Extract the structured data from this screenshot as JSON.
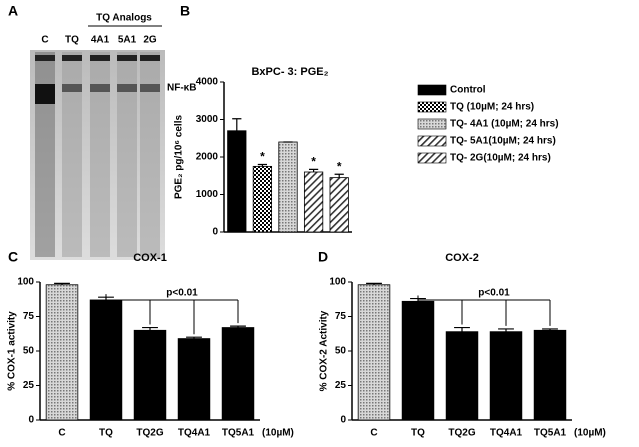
{
  "gel": {
    "panel": "A",
    "header": "TQ Analogs",
    "lanes": [
      "C",
      "TQ",
      "4A1",
      "5A1",
      "2G"
    ],
    "band_label": "NF-κB"
  },
  "chart_data": [
    {
      "panel": "B",
      "type": "bar",
      "title": "BxPC- 3: PGE₂",
      "ylabel": "PGE₂ pg/10⁶ cells",
      "ylim": [
        0,
        4000
      ],
      "yticks": [
        0,
        1000,
        2000,
        3000,
        4000
      ],
      "series": [
        {
          "name": "Control",
          "color": "#000000",
          "pattern": "solid",
          "values": [
            2700
          ],
          "errors": [
            320
          ]
        },
        {
          "name": "TQ (10µM; 24 hrs)",
          "color": "#000000",
          "pattern": "checker",
          "values": [
            1750
          ],
          "errors": [
            50
          ],
          "marker": "*"
        },
        {
          "name": "TQ- 4A1 (10µM; 24 hrs)",
          "color": "#555555",
          "pattern": "dots",
          "values": [
            2400
          ],
          "errors": [
            0
          ]
        },
        {
          "name": "TQ- 5A1(10µM; 24 hrs)",
          "color": "#333333",
          "pattern": "hatch",
          "values": [
            1600
          ],
          "errors": [
            70
          ],
          "marker": "*"
        },
        {
          "name": "TQ- 2G(10µM; 24 hrs)",
          "color": "#333333",
          "pattern": "hatch",
          "values": [
            1450
          ],
          "errors": [
            90
          ],
          "marker": "*"
        }
      ]
    },
    {
      "panel": "C",
      "type": "bar",
      "title": "COX-1",
      "ylabel": "% COX-1 activity",
      "categories": [
        "C",
        "TQ",
        "TQ2G",
        "TQ4A1",
        "TQ5A1"
      ],
      "unit": "(10µM)",
      "values": [
        98,
        87,
        65,
        59,
        67
      ],
      "errors": [
        1,
        2,
        2,
        1,
        1
      ],
      "colors": [
        "#888888",
        "#000000",
        "#000000",
        "#000000",
        "#000000"
      ],
      "patterns": [
        "dots",
        "solid",
        "solid",
        "solid",
        "solid"
      ],
      "annotation": "p<0.01",
      "ylim": [
        0,
        100
      ],
      "yticks": [
        0,
        25,
        50,
        75,
        100
      ]
    },
    {
      "panel": "D",
      "type": "bar",
      "title": "COX-2",
      "ylabel": "% COX-2 Activity",
      "categories": [
        "C",
        "TQ",
        "TQ2G",
        "TQ4A1",
        "TQ5A1"
      ],
      "unit": "(10µM)",
      "values": [
        98,
        86,
        64,
        64,
        65
      ],
      "errors": [
        1,
        2,
        3,
        2,
        1
      ],
      "colors": [
        "#888888",
        "#000000",
        "#000000",
        "#000000",
        "#000000"
      ],
      "patterns": [
        "dots",
        "solid",
        "solid",
        "solid",
        "solid"
      ],
      "annotation": "p<0.01",
      "ylim": [
        0,
        100
      ],
      "yticks": [
        0,
        25,
        50,
        75,
        100
      ]
    }
  ]
}
